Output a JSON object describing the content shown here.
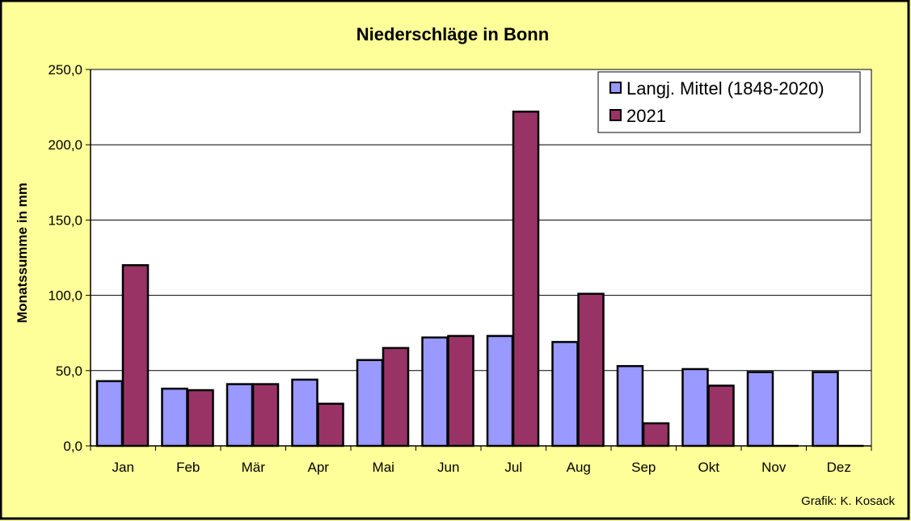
{
  "chart_data": {
    "type": "bar",
    "title": "Niederschläge in Bonn",
    "ylabel": "Monatssumme in mm",
    "xlabel": "",
    "ylim": [
      0,
      250
    ],
    "yticks": [
      "0,0",
      "50,0",
      "100,0",
      "150,0",
      "200,0",
      "250,0"
    ],
    "categories": [
      "Jan",
      "Feb",
      "Mär",
      "Apr",
      "Mai",
      "Jun",
      "Jul",
      "Aug",
      "Sep",
      "Okt",
      "Nov",
      "Dez"
    ],
    "series": [
      {
        "name": "Langj. Mittel (1848-2020)",
        "color": "#9999ff",
        "values": [
          43,
          38,
          41,
          44,
          57,
          72,
          73,
          69,
          53,
          51,
          49,
          49
        ]
      },
      {
        "name": "2021",
        "color": "#993366",
        "values": [
          120,
          37,
          41,
          28,
          65,
          73,
          222,
          101,
          15,
          40,
          0,
          0
        ]
      }
    ],
    "grid": true,
    "legend_position": "top-right",
    "background": "#ffff99",
    "plot_background": "#ffffff"
  },
  "footer": {
    "credit": "Grafik:  K. Kosack"
  }
}
